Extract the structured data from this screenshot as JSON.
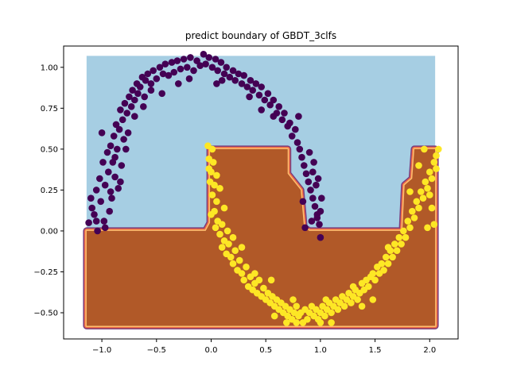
{
  "chart_data": {
    "type": "scatter",
    "title": "predict boundary of GBDT_3clfs",
    "xlabel": "",
    "ylabel": "",
    "xlim": [
      -1.35,
      2.26
    ],
    "ylim": [
      -0.66,
      1.13
    ],
    "x_ticks": [
      -1.0,
      -0.5,
      0.0,
      0.5,
      1.0,
      1.5,
      2.0
    ],
    "x_tick_labels": [
      "−1.0",
      "−0.5",
      "0.0",
      "0.5",
      "1.0",
      "1.5",
      "2.0"
    ],
    "y_ticks": [
      -0.5,
      -0.25,
      0.0,
      0.25,
      0.5,
      0.75,
      1.0
    ],
    "y_tick_labels": [
      "−0.50",
      "−0.25",
      "0.00",
      "0.25",
      "0.50",
      "0.75",
      "1.00"
    ],
    "grid": false,
    "background_regions": {
      "x_range": [
        -1.14,
        2.05
      ],
      "y_range": [
        -0.58,
        1.07
      ],
      "class0_color": "#a6cee3",
      "class1_color": "#b15928",
      "edge_colors": [
        "#7a3d7c",
        "#f06c45",
        "#fdbf6f"
      ],
      "class1_boundary": [
        [
          -1.14,
          0.0
        ],
        [
          -0.05,
          0.0
        ],
        [
          -0.01,
          0.05
        ],
        [
          -0.01,
          0.5
        ],
        [
          0.7,
          0.5
        ],
        [
          0.7,
          0.35
        ],
        [
          0.82,
          0.25
        ],
        [
          0.85,
          0.02
        ],
        [
          0.9,
          0.0
        ],
        [
          1.75,
          0.0
        ],
        [
          1.77,
          0.28
        ],
        [
          1.84,
          0.32
        ],
        [
          1.86,
          0.5
        ],
        [
          2.05,
          0.5
        ],
        [
          2.05,
          -0.58
        ],
        [
          -1.14,
          -0.58
        ]
      ]
    },
    "series": [
      {
        "color": "#440154",
        "points": [
          [
            -1.12,
            0.05
          ],
          [
            -1.09,
            0.14
          ],
          [
            -1.07,
            0.1
          ],
          [
            -1.05,
            0.25
          ],
          [
            -1.04,
            0.0
          ],
          [
            -1.02,
            0.32
          ],
          [
            -1.01,
            0.18
          ],
          [
            -0.99,
            0.42
          ],
          [
            -0.98,
            0.06
          ],
          [
            -0.97,
            0.28
          ],
          [
            -0.95,
            0.48
          ],
          [
            -0.94,
            0.36
          ],
          [
            -0.93,
            0.12
          ],
          [
            -0.92,
            0.52
          ],
          [
            -0.91,
            0.2
          ],
          [
            -0.9,
            0.42
          ],
          [
            -0.89,
            0.58
          ],
          [
            -0.88,
            0.33
          ],
          [
            -0.87,
            0.65
          ],
          [
            -0.86,
            0.5
          ],
          [
            -0.85,
            0.26
          ],
          [
            -0.84,
            0.62
          ],
          [
            -0.83,
            0.74
          ],
          [
            -0.82,
            0.4
          ],
          [
            -0.81,
            0.68
          ],
          [
            -0.8,
            0.56
          ],
          [
            -0.79,
            0.78
          ],
          [
            -0.77,
            0.72
          ],
          [
            -0.76,
            0.6
          ],
          [
            -0.75,
            0.82
          ],
          [
            -0.73,
            0.76
          ],
          [
            -0.72,
            0.86
          ],
          [
            -0.7,
            0.8
          ],
          [
            -0.68,
            0.9
          ],
          [
            -0.67,
            0.84
          ],
          [
            -0.65,
            0.88
          ],
          [
            -0.63,
            0.94
          ],
          [
            -0.61,
            0.82
          ],
          [
            -0.6,
            0.92
          ],
          [
            -0.58,
            0.96
          ],
          [
            -0.55,
            0.9
          ],
          [
            -0.53,
            0.98
          ],
          [
            -0.5,
            0.93
          ],
          [
            -0.47,
            1.0
          ],
          [
            -0.44,
            0.96
          ],
          [
            -0.42,
            1.02
          ],
          [
            -0.39,
            0.95
          ],
          [
            -0.36,
            1.03
          ],
          [
            -0.34,
            0.97
          ],
          [
            -0.31,
            1.04
          ],
          [
            -0.28,
            0.99
          ],
          [
            -0.25,
            1.05
          ],
          [
            -0.22,
            1.0
          ],
          [
            -0.19,
            1.06
          ],
          [
            -0.16,
            0.98
          ],
          [
            -0.13,
            1.04
          ],
          [
            -0.1,
            1.01
          ],
          [
            -0.07,
            1.08
          ],
          [
            -0.05,
            1.02
          ],
          [
            -0.02,
            1.06
          ],
          [
            0.01,
            1.0
          ],
          [
            0.04,
            1.05
          ],
          [
            0.06,
            0.98
          ],
          [
            0.09,
            1.03
          ],
          [
            0.12,
            0.96
          ],
          [
            0.14,
            1.0
          ],
          [
            0.17,
            0.94
          ],
          [
            0.2,
            0.98
          ],
          [
            0.22,
            0.92
          ],
          [
            0.25,
            0.96
          ],
          [
            0.28,
            0.9
          ],
          [
            0.3,
            0.95
          ],
          [
            0.33,
            0.88
          ],
          [
            0.36,
            0.92
          ],
          [
            0.38,
            0.86
          ],
          [
            0.41,
            0.9
          ],
          [
            0.44,
            0.83
          ],
          [
            0.46,
            0.88
          ],
          [
            0.49,
            0.8
          ],
          [
            0.52,
            0.84
          ],
          [
            0.54,
            0.77
          ],
          [
            0.57,
            0.8
          ],
          [
            0.6,
            0.72
          ],
          [
            0.62,
            0.76
          ],
          [
            0.65,
            0.68
          ],
          [
            0.67,
            0.72
          ],
          [
            0.7,
            0.64
          ],
          [
            0.72,
            0.66
          ],
          [
            0.74,
            0.58
          ],
          [
            0.77,
            0.62
          ],
          [
            0.79,
            0.54
          ],
          [
            0.81,
            0.5
          ],
          [
            0.83,
            0.45
          ],
          [
            0.85,
            0.4
          ],
          [
            0.87,
            0.35
          ],
          [
            0.89,
            0.3
          ],
          [
            0.91,
            0.25
          ],
          [
            0.93,
            0.2
          ],
          [
            0.95,
            0.15
          ],
          [
            0.97,
            0.1
          ],
          [
            0.99,
            0.04
          ],
          [
            0.9,
            0.48
          ],
          [
            0.93,
            0.36
          ],
          [
            0.96,
            0.28
          ],
          [
            1.01,
            0.2
          ],
          [
            1.0,
            0.12
          ],
          [
            0.86,
            0.02
          ],
          [
            1.0,
            -0.04
          ],
          [
            0.8,
            0.7
          ],
          [
            0.57,
            0.7
          ],
          [
            0.46,
            0.74
          ],
          [
            0.35,
            0.82
          ],
          [
            -0.3,
            0.9
          ],
          [
            -0.45,
            0.84
          ],
          [
            -0.62,
            0.76
          ],
          [
            -0.78,
            0.5
          ],
          [
            -0.92,
            0.24
          ],
          [
            -1.1,
            0.2
          ],
          [
            -1.0,
            0.6
          ],
          [
            -0.88,
            0.45
          ],
          [
            -0.97,
            0.02
          ],
          [
            -1.05,
            0.06
          ],
          [
            -0.83,
            0.3
          ],
          [
            0.98,
            0.32
          ],
          [
            0.94,
            0.42
          ],
          [
            0.84,
            0.18
          ],
          [
            0.97,
            0.08
          ],
          [
            0.92,
            0.06
          ],
          [
            0.1,
            0.92
          ],
          [
            0.05,
            0.9
          ],
          [
            -0.2,
            0.93
          ],
          [
            -0.55,
            0.86
          ],
          [
            -0.7,
            0.7
          ]
        ]
      },
      {
        "color": "#fde725",
        "points": [
          [
            -0.03,
            0.52
          ],
          [
            0.01,
            0.5
          ],
          [
            -0.02,
            0.44
          ],
          [
            0.02,
            0.42
          ],
          [
            0.0,
            0.36
          ],
          [
            -0.01,
            0.3
          ],
          [
            0.03,
            0.28
          ],
          [
            0.01,
            0.22
          ],
          [
            0.05,
            0.18
          ],
          [
            0.03,
            0.12
          ],
          [
            0.0,
            0.1
          ],
          [
            0.06,
            0.06
          ],
          [
            0.04,
            0.02
          ],
          [
            0.08,
            -0.02
          ],
          [
            0.1,
            0.04
          ],
          [
            0.12,
            -0.06
          ],
          [
            0.1,
            -0.1
          ],
          [
            0.14,
            -0.14
          ],
          [
            0.16,
            -0.08
          ],
          [
            0.18,
            -0.16
          ],
          [
            0.2,
            -0.2
          ],
          [
            0.22,
            -0.12
          ],
          [
            0.24,
            -0.24
          ],
          [
            0.26,
            -0.18
          ],
          [
            0.28,
            -0.26
          ],
          [
            0.3,
            -0.3
          ],
          [
            0.32,
            -0.22
          ],
          [
            0.34,
            -0.34
          ],
          [
            0.36,
            -0.28
          ],
          [
            0.38,
            -0.36
          ],
          [
            0.4,
            -0.32
          ],
          [
            0.42,
            -0.38
          ],
          [
            0.44,
            -0.3
          ],
          [
            0.46,
            -0.4
          ],
          [
            0.48,
            -0.35
          ],
          [
            0.5,
            -0.42
          ],
          [
            0.52,
            -0.38
          ],
          [
            0.54,
            -0.44
          ],
          [
            0.56,
            -0.4
          ],
          [
            0.58,
            -0.46
          ],
          [
            0.6,
            -0.42
          ],
          [
            0.62,
            -0.48
          ],
          [
            0.64,
            -0.44
          ],
          [
            0.66,
            -0.5
          ],
          [
            0.68,
            -0.46
          ],
          [
            0.7,
            -0.52
          ],
          [
            0.72,
            -0.48
          ],
          [
            0.74,
            -0.54
          ],
          [
            0.76,
            -0.5
          ],
          [
            0.78,
            -0.46
          ],
          [
            0.8,
            -0.52
          ],
          [
            0.82,
            -0.5
          ],
          [
            0.84,
            -0.56
          ],
          [
            0.86,
            -0.48
          ],
          [
            0.88,
            -0.54
          ],
          [
            0.9,
            -0.5
          ],
          [
            0.92,
            -0.46
          ],
          [
            0.94,
            -0.52
          ],
          [
            0.96,
            -0.48
          ],
          [
            0.98,
            -0.54
          ],
          [
            1.0,
            -0.5
          ],
          [
            1.02,
            -0.46
          ],
          [
            1.04,
            -0.52
          ],
          [
            1.06,
            -0.48
          ],
          [
            1.08,
            -0.44
          ],
          [
            1.1,
            -0.5
          ],
          [
            1.12,
            -0.46
          ],
          [
            1.14,
            -0.42
          ],
          [
            1.16,
            -0.48
          ],
          [
            1.18,
            -0.44
          ],
          [
            1.2,
            -0.4
          ],
          [
            1.22,
            -0.46
          ],
          [
            1.24,
            -0.42
          ],
          [
            1.26,
            -0.38
          ],
          [
            1.28,
            -0.44
          ],
          [
            1.3,
            -0.4
          ],
          [
            1.32,
            -0.36
          ],
          [
            1.34,
            -0.42
          ],
          [
            1.36,
            -0.38
          ],
          [
            1.38,
            -0.32
          ],
          [
            1.4,
            -0.36
          ],
          [
            1.42,
            -0.3
          ],
          [
            1.44,
            -0.34
          ],
          [
            1.46,
            -0.28
          ],
          [
            1.48,
            -0.26
          ],
          [
            1.5,
            -0.3
          ],
          [
            1.52,
            -0.22
          ],
          [
            1.54,
            -0.26
          ],
          [
            1.56,
            -0.2
          ],
          [
            1.58,
            -0.24
          ],
          [
            1.6,
            -0.16
          ],
          [
            1.62,
            -0.2
          ],
          [
            1.64,
            -0.12
          ],
          [
            1.66,
            -0.16
          ],
          [
            1.68,
            -0.08
          ],
          [
            1.7,
            -0.12
          ],
          [
            1.72,
            -0.04
          ],
          [
            1.74,
            -0.08
          ],
          [
            1.76,
            0.0
          ],
          [
            1.78,
            -0.04
          ],
          [
            1.8,
            0.06
          ],
          [
            1.82,
            0.02
          ],
          [
            1.84,
            0.12
          ],
          [
            1.86,
            0.08
          ],
          [
            1.88,
            0.18
          ],
          [
            1.9,
            0.14
          ],
          [
            1.92,
            0.24
          ],
          [
            1.94,
            0.2
          ],
          [
            1.96,
            0.3
          ],
          [
            1.98,
            0.26
          ],
          [
            2.0,
            0.36
          ],
          [
            2.02,
            0.32
          ],
          [
            2.04,
            0.42
          ],
          [
            2.06,
            0.38
          ],
          [
            2.08,
            0.5
          ],
          [
            2.06,
            0.46
          ],
          [
            2.04,
            0.04
          ],
          [
            1.98,
            0.02
          ],
          [
            2.0,
            0.22
          ],
          [
            1.95,
            0.5
          ],
          [
            1.9,
            0.4
          ],
          [
            0.2,
            -0.04
          ],
          [
            0.15,
            0.0
          ],
          [
            0.08,
            0.26
          ],
          [
            -0.02,
            0.38
          ],
          [
            0.05,
            0.34
          ],
          [
            0.28,
            -0.1
          ],
          [
            0.55,
            -0.3
          ],
          [
            0.75,
            -0.42
          ],
          [
            1.05,
            -0.42
          ],
          [
            1.3,
            -0.34
          ],
          [
            1.62,
            -0.1
          ],
          [
            1.82,
            0.24
          ],
          [
            2.02,
            0.14
          ],
          [
            1.1,
            -0.56
          ],
          [
            0.78,
            -0.56
          ],
          [
            1.0,
            -0.56
          ],
          [
            0.69,
            -0.56
          ],
          [
            0.4,
            -0.26
          ],
          [
            0.12,
            0.14
          ],
          [
            1.48,
            -0.42
          ],
          [
            1.38,
            -0.46
          ],
          [
            0.58,
            -0.52
          ]
        ]
      }
    ]
  }
}
